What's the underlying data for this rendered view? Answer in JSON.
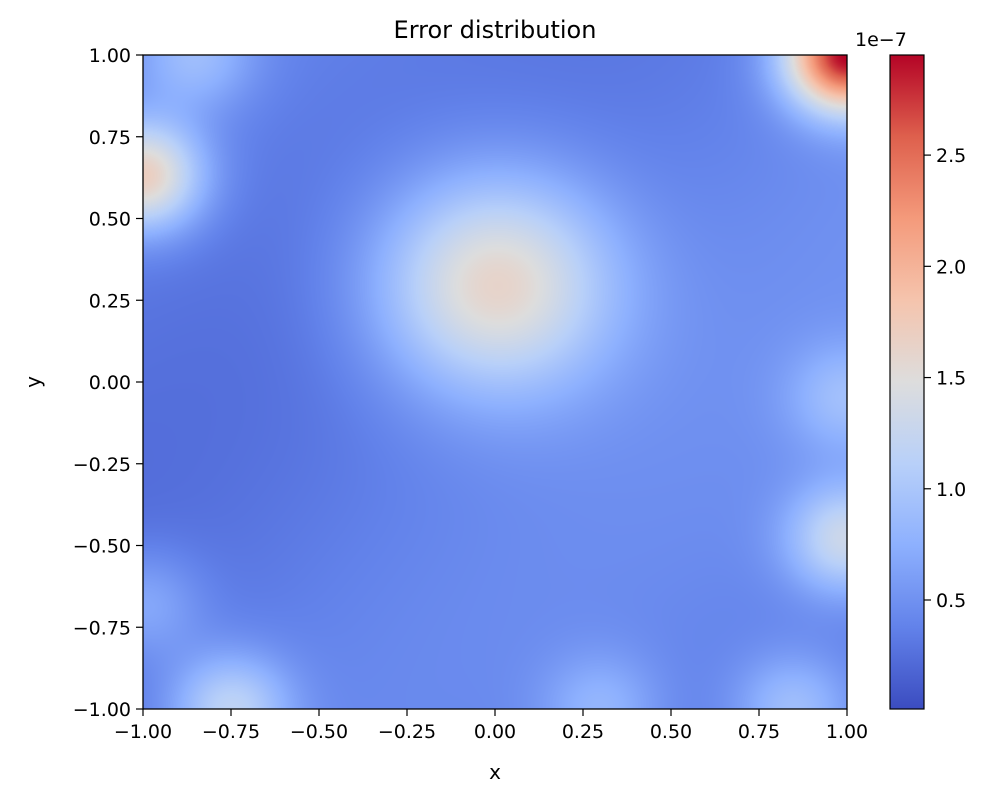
{
  "chart_data": {
    "type": "heatmap",
    "title": "Error distribution",
    "xlabel": "x",
    "ylabel": "y",
    "xlim": [
      -1.0,
      1.0
    ],
    "ylim": [
      -1.0,
      1.0
    ],
    "x_ticks": [
      -1.0,
      -0.75,
      -0.5,
      -0.25,
      0.0,
      0.25,
      0.5,
      0.75,
      1.0
    ],
    "y_ticks": [
      -1.0,
      -0.75,
      -0.5,
      -0.25,
      0.0,
      0.25,
      0.5,
      0.75,
      1.0
    ],
    "x_tick_labels": [
      "−1.00",
      "−0.75",
      "−0.50",
      "−0.25",
      "0.00",
      "0.25",
      "0.50",
      "0.75",
      "1.00"
    ],
    "y_tick_labels": [
      "−1.00",
      "−0.75",
      "−0.50",
      "−0.25",
      "0.00",
      "0.25",
      "0.50",
      "0.75",
      "1.00"
    ],
    "colormap": "coolwarm",
    "colorbar": {
      "range": [
        1e-09,
        2.95e-07
      ],
      "ticks": [
        5e-08,
        1e-07,
        1.5e-07,
        2e-07,
        2.5e-07
      ],
      "tick_labels": [
        "0.5",
        "1.0",
        "1.5",
        "2.0",
        "2.5"
      ],
      "offset_label": "1e−7",
      "placement": "right"
    },
    "features": [
      {
        "x": 0.0,
        "y": 0.3,
        "value": 1.7e-07
      },
      {
        "x": 1.0,
        "y": 1.0,
        "value": 2.95e-07
      },
      {
        "x": -1.0,
        "y": 0.63,
        "value": 1.75e-07
      },
      {
        "x": -0.75,
        "y": -1.0,
        "value": 1.2e-07
      },
      {
        "x": 1.0,
        "y": -0.48,
        "value": 1.3e-07
      },
      {
        "x": 1.0,
        "y": -0.05,
        "value": 8.5e-08
      },
      {
        "x": 0.85,
        "y": -1.0,
        "value": 9.5e-08
      },
      {
        "x": 0.3,
        "y": -1.0,
        "value": 8e-08
      },
      {
        "x": -0.85,
        "y": 1.0,
        "value": 9e-08
      },
      {
        "x": -1.0,
        "y": -0.68,
        "value": 8e-08
      }
    ]
  }
}
